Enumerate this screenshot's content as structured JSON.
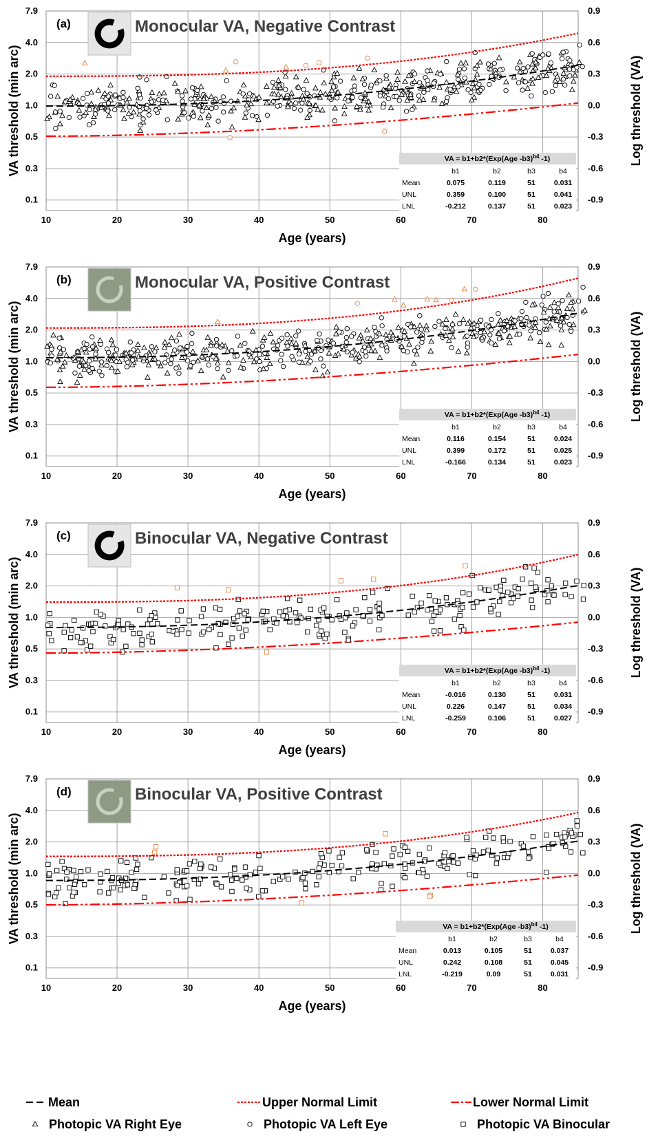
{
  "chart_data": [
    {
      "type": "scatter",
      "label": "(a)",
      "title": "Monocular VA, Negative Contrast",
      "icon": "negative-contrast-ring-icon",
      "xlabel": "Age (years)",
      "ylabel": "VA threshold (min arc)",
      "ylabel_right": "Log threshold (VA)",
      "xlim": [
        10,
        85
      ],
      "ylim_log": [
        -1,
        0.9
      ],
      "xticks": [
        "10",
        "20",
        "30",
        "40",
        "50",
        "60",
        "70",
        "80"
      ],
      "yticks_left": [
        "7.9",
        "4.0",
        "2.0",
        "1.0",
        "0.5",
        "0.3",
        "0.1"
      ],
      "yticks_right": [
        "0.9",
        "0.6",
        "0.3",
        "0.0",
        "-0.3",
        "-0.6",
        "-0.9"
      ],
      "point_series": [
        "Photopic VA Right Eye",
        "Photopic VA Left Eye"
      ],
      "outlier_color": "#e8803a",
      "params": {
        "mean": [
          0.075,
          0.119,
          51,
          0.031
        ],
        "unl": [
          0.359,
          0.1,
          51,
          0.041
        ],
        "lnl": [
          -0.212,
          0.137,
          51,
          0.023
        ]
      },
      "table": {
        "formula": "VA = b1+b2*(Exp(Age -b3)",
        "formula_sup": "b4",
        "formula_end": " -1)",
        "headers": [
          "b1",
          "b2",
          "b3",
          "b4"
        ],
        "rows": [
          {
            "name": "Mean",
            "values": [
              "0.075",
              "0.119",
              "51",
              "0.031"
            ]
          },
          {
            "name": "UNL",
            "values": [
              "0.359",
              "0.100",
              "51",
              "0.041"
            ]
          },
          {
            "name": "LNL",
            "values": [
              "-0.212",
              "0.137",
              "51",
              "0.023"
            ]
          }
        ]
      }
    },
    {
      "type": "scatter",
      "label": "(b)",
      "title": "Monocular VA, Positive Contrast",
      "icon": "positive-contrast-ring-icon",
      "xlabel": "Age (years)",
      "ylabel": "VA threshold (min arc)",
      "ylabel_right": "Log threshold (VA)",
      "xlim": [
        10,
        85
      ],
      "ylim_log": [
        -1,
        0.9
      ],
      "xticks": [
        "10",
        "20",
        "30",
        "40",
        "50",
        "60",
        "70",
        "80"
      ],
      "yticks_left": [
        "7.9",
        "4.0",
        "2.0",
        "1.0",
        "0.5",
        "0.3",
        "0.1"
      ],
      "yticks_right": [
        "0.9",
        "0.6",
        "0.3",
        "0.0",
        "-0.3",
        "-0.6",
        "-0.9"
      ],
      "point_series": [
        "Photopic VA Right Eye",
        "Photopic VA Left Eye"
      ],
      "outlier_color": "#e8803a",
      "params": {
        "mean": [
          0.116,
          0.154,
          51,
          0.024
        ],
        "unl": [
          0.399,
          0.172,
          51,
          0.025
        ],
        "lnl": [
          -0.166,
          0.134,
          51,
          0.023
        ]
      },
      "table": {
        "formula": "VA = b1+b2*(Exp(Age -b3)",
        "formula_sup": "b4",
        "formula_end": " -1)",
        "headers": [
          "b1",
          "b2",
          "b3",
          "b4"
        ],
        "rows": [
          {
            "name": "Mean",
            "values": [
              "0.116",
              "0.154",
              "51",
              "0.024"
            ]
          },
          {
            "name": "UNL",
            "values": [
              "0.399",
              "0.172",
              "51",
              "0.025"
            ]
          },
          {
            "name": "LNL",
            "values": [
              "-0.166",
              "0.134",
              "51",
              "0.023"
            ]
          }
        ]
      }
    },
    {
      "type": "scatter",
      "label": "(c)",
      "title": "Binocular VA, Negative Contrast",
      "icon": "negative-contrast-ring-icon",
      "xlabel": "Age (years)",
      "ylabel": "VA threshold (min arc)",
      "ylabel_right": "Log threshold (VA)",
      "xlim": [
        10,
        85
      ],
      "ylim_log": [
        -1,
        0.9
      ],
      "xticks": [
        "10",
        "20",
        "30",
        "40",
        "50",
        "60",
        "70",
        "80"
      ],
      "yticks_left": [
        "7.9",
        "4.0",
        "2.0",
        "1.0",
        "0.5",
        "0.3",
        "0.1"
      ],
      "yticks_right": [
        "0.9",
        "0.6",
        "0.3",
        "0.0",
        "-0.3",
        "-0.6",
        "-0.9"
      ],
      "point_series": [
        "Photopic VA Binocular"
      ],
      "outlier_color": "#e8803a",
      "params": {
        "mean": [
          -0.016,
          0.13,
          51,
          0.031
        ],
        "unl": [
          0.226,
          0.147,
          51,
          0.034
        ],
        "lnl": [
          -0.259,
          0.106,
          51,
          0.027
        ]
      },
      "table": {
        "formula": "VA = b1+b2*(Exp(Age -b3)",
        "formula_sup": "b4",
        "formula_end": " -1)",
        "headers": [
          "b1",
          "b2",
          "b3",
          "b4"
        ],
        "rows": [
          {
            "name": "Mean",
            "values": [
              "-0.016",
              "0.130",
              "51",
              "0.031"
            ]
          },
          {
            "name": "UNL",
            "values": [
              "0.226",
              "0.147",
              "51",
              "0.034"
            ]
          },
          {
            "name": "LNL",
            "values": [
              "-0.259",
              "0.106",
              "51",
              "0.027"
            ]
          }
        ]
      }
    },
    {
      "type": "scatter",
      "label": "(d)",
      "title": "Binocular VA, Positive Contrast",
      "icon": "positive-contrast-ring-icon",
      "xlabel": "Age (years)",
      "ylabel": "VA threshold (min arc)",
      "ylabel_right": "Log threshold (VA)",
      "xlim": [
        10,
        85
      ],
      "ylim_log": [
        -1,
        0.9
      ],
      "xticks": [
        "10",
        "20",
        "30",
        "40",
        "50",
        "60",
        "70",
        "80"
      ],
      "yticks_left": [
        "7.9",
        "4.0",
        "2.0",
        "1.0",
        "0.5",
        "0.3",
        "0.1"
      ],
      "yticks_right": [
        "0.9",
        "0.6",
        "0.3",
        "0.0",
        "-0.3",
        "-0.6",
        "-0.9"
      ],
      "point_series": [
        "Photopic VA Binocular"
      ],
      "outlier_color": "#e8803a",
      "params": {
        "mean": [
          0.013,
          0.105,
          51,
          0.037
        ],
        "unl": [
          0.242,
          0.108,
          51,
          0.045
        ],
        "lnl": [
          -0.219,
          0.09,
          51,
          0.031
        ]
      },
      "table": {
        "formula": "VA = b1+b2*(Exp(Age -b3)",
        "formula_sup": "b4",
        "formula_end": " -1)",
        "headers": [
          "b1",
          "b2",
          "b3",
          "b4"
        ],
        "rows": [
          {
            "name": "Mean",
            "values": [
              "0.013",
              "0.105",
              "51",
              "0.037"
            ]
          },
          {
            "name": "UNL",
            "values": [
              "0.242",
              "0.108",
              "51",
              "0.045"
            ]
          },
          {
            "name": "LNL",
            "values": [
              "-0.219",
              "0.09",
              "51",
              "0.031"
            ]
          }
        ]
      }
    }
  ],
  "legend": {
    "items": [
      {
        "label": "Mean",
        "style": "mean",
        "color": "#000000"
      },
      {
        "label": "Upper Normal Limit",
        "style": "unl",
        "color": "#ff0000"
      },
      {
        "label": "Lower Normal Limit",
        "style": "lnl",
        "color": "#ff0000"
      },
      {
        "label": "Photopic VA Right Eye",
        "style": "triangle",
        "color": "#000000"
      },
      {
        "label": "Photopic VA Left Eye",
        "style": "circle",
        "color": "#000000"
      },
      {
        "label": "Photopic VA Binocular",
        "style": "square",
        "color": "#000000"
      }
    ]
  },
  "colors": {
    "mean": "#000000",
    "limits": "#ff0000",
    "outlier": "#e8803a",
    "grid": "#a6a6a6",
    "table_header": "#d9d9d9"
  }
}
